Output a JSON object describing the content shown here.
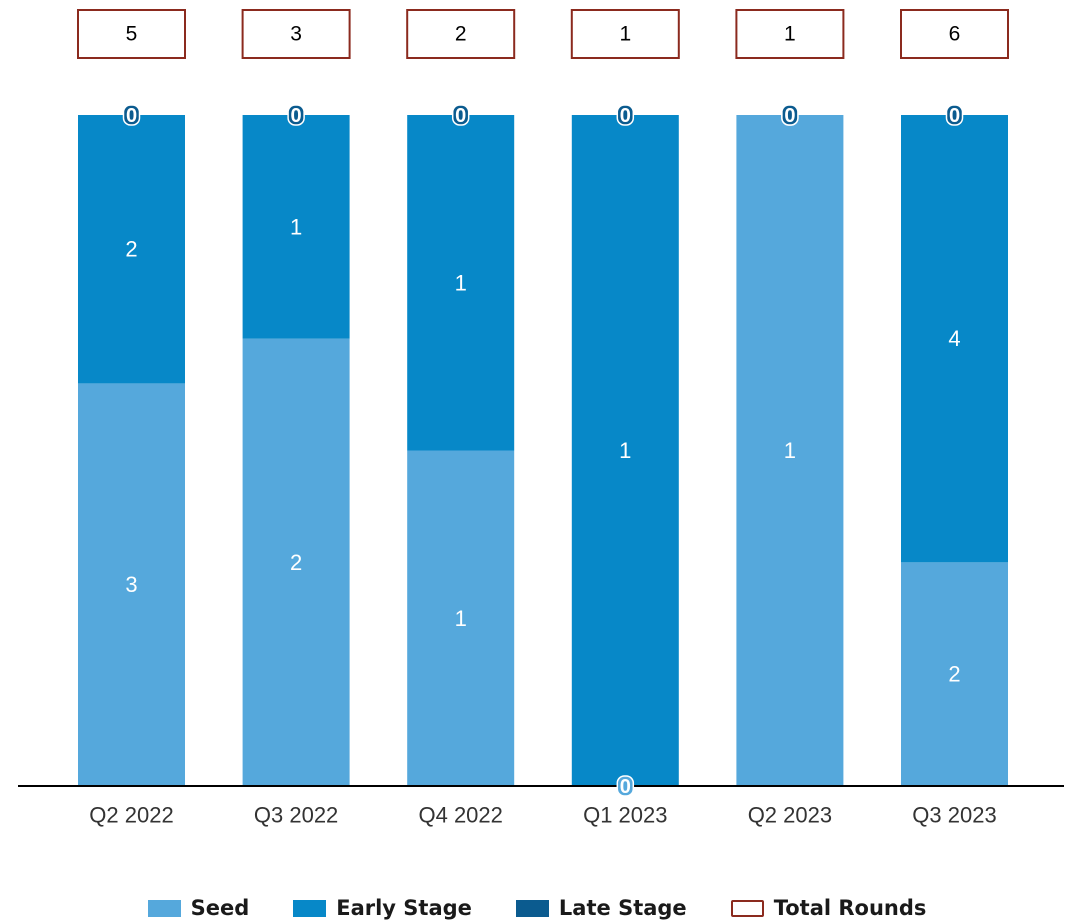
{
  "chart_data": {
    "type": "bar",
    "stacked": true,
    "categories": [
      "Q2 2022",
      "Q3 2022",
      "Q4 2022",
      "Q1 2023",
      "Q2 2023",
      "Q3 2023"
    ],
    "series": [
      {
        "name": "Seed",
        "color": "#55a8dc",
        "values": [
          3,
          2,
          1,
          0,
          1,
          2
        ]
      },
      {
        "name": "Early Stage",
        "color": "#0788c8",
        "values": [
          2,
          1,
          1,
          1,
          0,
          4
        ]
      },
      {
        "name": "Late Stage",
        "color": "#0b5b8f",
        "values": [
          0,
          0,
          0,
          0,
          0,
          0
        ]
      }
    ],
    "totals": {
      "name": "Total Rounds",
      "border_color": "#8b2a1e",
      "values": [
        5,
        3,
        2,
        1,
        1,
        6
      ]
    },
    "data_labels": {
      "seed": [
        "3",
        "2",
        "1",
        "0",
        "1",
        "2"
      ],
      "early": [
        "2",
        "1",
        "1",
        "1",
        "0",
        "4"
      ],
      "late": [
        "0",
        "0",
        "0",
        "0",
        "0",
        "0"
      ],
      "totals": [
        "5",
        "3",
        "2",
        "1",
        "1",
        "6"
      ]
    },
    "normalized_to": "percent",
    "legend_position": "bottom",
    "grid": false
  }
}
